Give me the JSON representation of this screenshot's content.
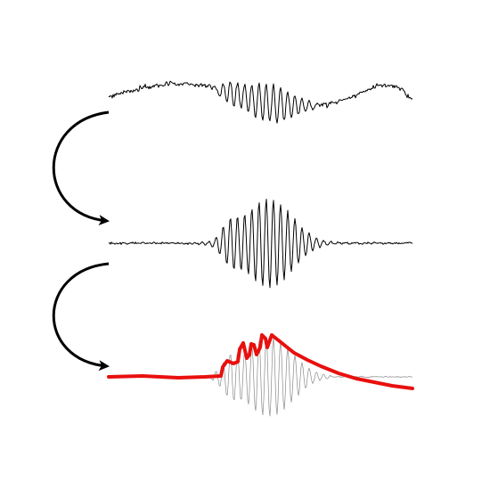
{
  "figure": {
    "colors": {
      "background": "#ffffff",
      "trace": "#000000",
      "faint_trace": "#8a8a8a",
      "envelope": "#e8100e",
      "arrow": "#000000"
    },
    "panels": [
      {
        "name": "raw-signal",
        "description_label": ""
      },
      {
        "name": "filtered-signal",
        "description_label": ""
      },
      {
        "name": "envelope-signal",
        "description_label": ""
      }
    ],
    "arrows": [
      {
        "from": "raw-signal",
        "to": "filtered-signal"
      },
      {
        "from": "filtered-signal",
        "to": "envelope-signal"
      }
    ]
  }
}
